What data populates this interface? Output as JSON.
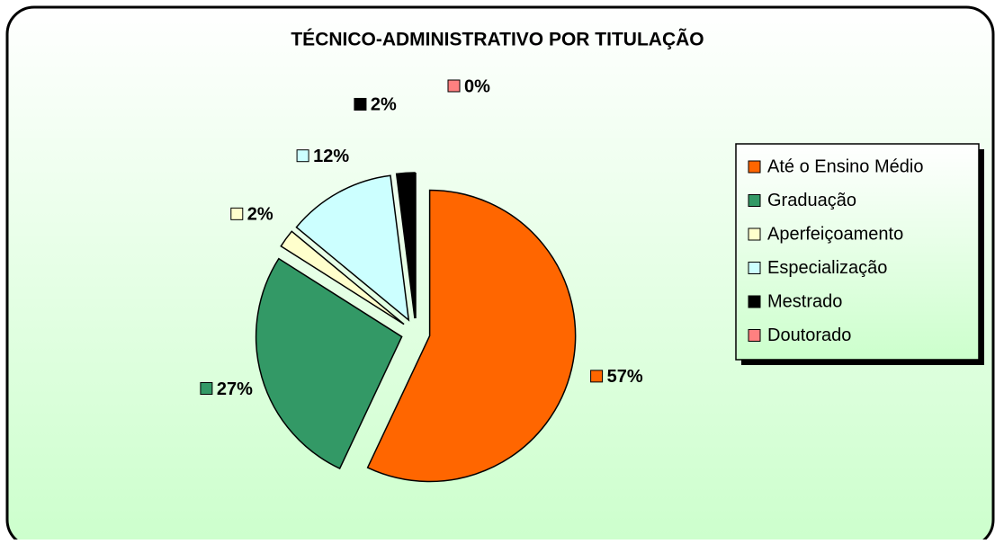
{
  "chart_data": {
    "type": "pie",
    "title": "TÉCNICO-ADMINISTRATIVO POR TITULAÇÃO",
    "categories": [
      "Até o Ensino Médio",
      "Graduação",
      "Aperfeiçoamento",
      "Especialização",
      "Mestrado",
      "Doutorado"
    ],
    "values": [
      57,
      27,
      2,
      12,
      2,
      0
    ],
    "value_labels": [
      "57%",
      "27%",
      "2%",
      "12%",
      "2%",
      "0%"
    ],
    "colors": [
      "#FF6600",
      "#339966",
      "#FFFFCC",
      "#CCFFFF",
      "#000000",
      "#FF8080"
    ],
    "legend": "right"
  }
}
